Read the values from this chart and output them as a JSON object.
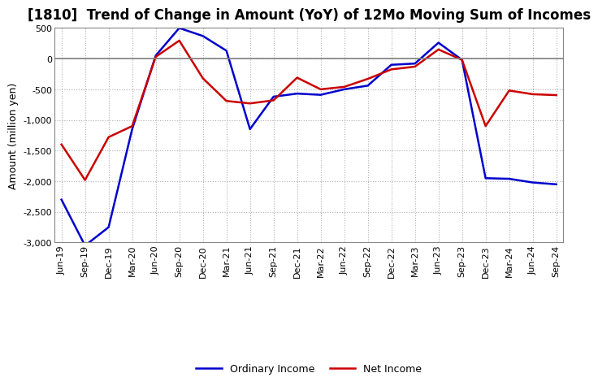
{
  "title": "[1810]  Trend of Change in Amount (YoY) of 12Mo Moving Sum of Incomes",
  "ylabel": "Amount (million yen)",
  "x_labels": [
    "Jun-19",
    "Sep-19",
    "Dec-19",
    "Mar-20",
    "Jun-20",
    "Sep-20",
    "Dec-20",
    "Mar-21",
    "Jun-21",
    "Sep-21",
    "Dec-21",
    "Mar-22",
    "Jun-22",
    "Sep-22",
    "Dec-22",
    "Mar-23",
    "Jun-23",
    "Sep-23",
    "Dec-23",
    "Mar-24",
    "Jun-24",
    "Sep-24"
  ],
  "ordinary_income": [
    -2300,
    -3050,
    -2750,
    -1150,
    50,
    500,
    370,
    130,
    -1150,
    -620,
    -570,
    -590,
    -500,
    -440,
    -100,
    -80,
    260,
    -20,
    -1950,
    -1960,
    -2020,
    -2050
  ],
  "net_income": [
    -1400,
    -1980,
    -1280,
    -1100,
    30,
    295,
    -320,
    -690,
    -730,
    -680,
    -310,
    -500,
    -460,
    -330,
    -175,
    -130,
    150,
    -20,
    -1100,
    -520,
    -580,
    -595
  ],
  "ordinary_color": "#0000cc",
  "net_color": "#cc0000",
  "ylim": [
    -3000,
    500
  ],
  "yticks": [
    -3000,
    -2500,
    -2000,
    -1500,
    -1000,
    -500,
    0,
    500
  ],
  "bg_color": "#ffffff",
  "grid_color": "#b0b0b0",
  "zero_line_color": "#808080",
  "title_fontsize": 12,
  "label_fontsize": 9,
  "tick_fontsize": 8,
  "legend_fontsize": 9
}
